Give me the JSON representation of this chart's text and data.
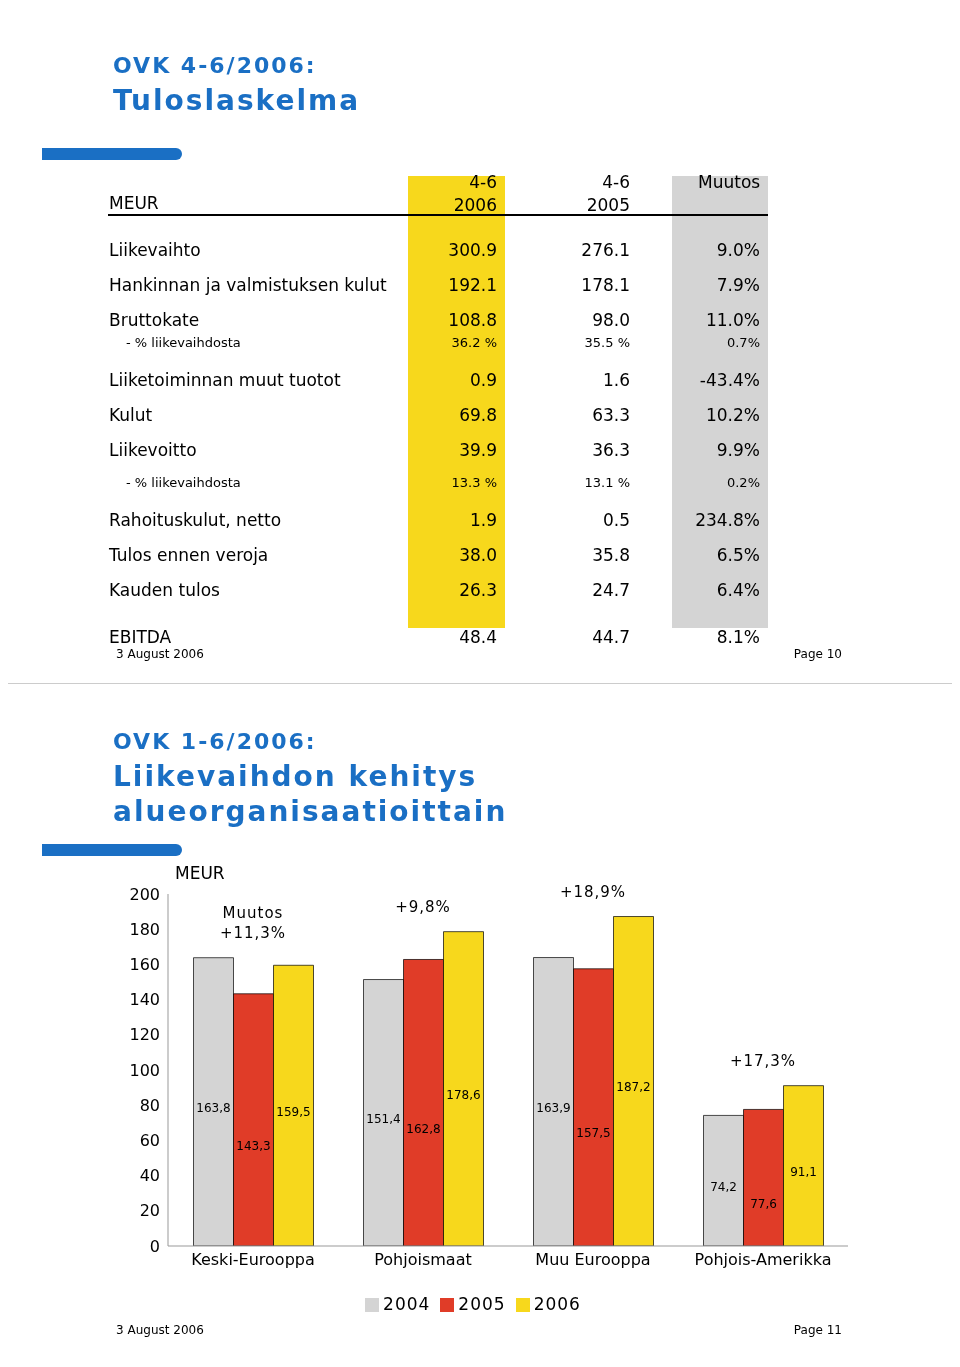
{
  "chart_data": [
    {
      "type": "other",
      "title": "OVK 4-6/2006:",
      "subtitle": "Tuloslaskelma",
      "ylabel": "MEUR",
      "categories": [
        "4-6 2006",
        "4-6 2005",
        "Muutos"
      ],
      "y_categories": [
        "Liikevaihto",
        "Hankinnan ja valmistuksen kulut",
        "Bruttokate",
        "- % liikevaihdosta",
        "Liiketoiminnan muut tuotot",
        "Kulut",
        "Liikevoitto",
        "- % liikevaihdosta",
        "Rahoituskulut, netto",
        "Tulos ennen veroja",
        "Kauden tulos",
        "EBITDA"
      ],
      "cell_labels": [
        [
          "300.9",
          "276.1",
          "9.0%"
        ],
        [
          "192.1",
          "178.1",
          "7.9%"
        ],
        [
          "108.8",
          "98.0",
          "11.0%"
        ],
        [
          "36.2 %",
          "35.5 %",
          "0.7%"
        ],
        [
          "0.9",
          "1.6",
          "-43.4%"
        ],
        [
          "69.8",
          "63.3",
          "10.2%"
        ],
        [
          "39.9",
          "36.3",
          "9.9%"
        ],
        [
          "13.3 %",
          "13.1 %",
          "0.2%"
        ],
        [
          "1.9",
          "0.5",
          "234.8%"
        ],
        [
          "38.0",
          "35.8",
          "6.5%"
        ],
        [
          "26.3",
          "24.7",
          "6.4%"
        ],
        [
          "48.4",
          "44.7",
          "8.1%"
        ]
      ],
      "annotations": [
        "3 August 2006",
        "Page 10"
      ]
    },
    {
      "type": "bar",
      "title": "OVK 1-6/2006:",
      "subtitle": "Liikevaihdon kehitys alueorganisaatioittain",
      "ylabel": "MEUR",
      "categories": [
        "Keski-Eurooppa",
        "Pohjoismaat",
        "Muu Eurooppa",
        "Pohjois-Amerikka"
      ],
      "series": [
        {
          "name": "2004",
          "color": "#d4d4d4",
          "values": [
            163.8,
            151.4,
            163.9,
            74.2
          ],
          "value_labels": [
            "163,8",
            "151,4",
            "163,9",
            "74,2"
          ]
        },
        {
          "name": "2005",
          "color": "#e03c28",
          "values": [
            143.3,
            162.8,
            157.5,
            77.6
          ],
          "value_labels": [
            "143,3",
            "162,8",
            "157,5",
            "77,6"
          ]
        },
        {
          "name": "2006",
          "color": "#f7d81c",
          "values": [
            159.5,
            178.6,
            187.2,
            91.1
          ],
          "value_labels": [
            "159,5",
            "178,6",
            "187,2",
            "91,1"
          ]
        }
      ],
      "ylim": [
        0,
        200
      ],
      "yticks": [
        0,
        20,
        40,
        60,
        80,
        100,
        120,
        140,
        160,
        180,
        200
      ],
      "grid": false,
      "legend": "bottom",
      "annotations": [
        "Muutos +11,3%",
        "+9,8%",
        "+18,9%",
        "+17,3%",
        "3 August 2006",
        "Page 11"
      ]
    }
  ]
}
